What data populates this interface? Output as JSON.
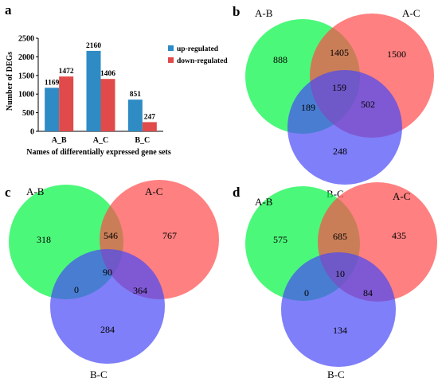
{
  "panel_labels": [
    "a",
    "b",
    "c",
    "d"
  ],
  "colors": {
    "up": "#2e8bc4",
    "down": "#e04a4a",
    "venn_ab": "#00f541",
    "venn_ac": "#ff4a4a",
    "venn_bc": "#4848f7"
  },
  "chart_data": [
    {
      "type": "bar",
      "title": "",
      "xlabel": "Names of differentially expressed gene sets",
      "ylabel": "Number of DEGs",
      "ylim": [
        0,
        2500
      ],
      "yticks": [
        0,
        500,
        1000,
        1500,
        2000,
        2500
      ],
      "categories": [
        "A_B",
        "A_C",
        "B_C"
      ],
      "series": [
        {
          "name": "up-regulated",
          "values": [
            1169,
            2160,
            851
          ]
        },
        {
          "name": "down-regulated",
          "values": [
            1472,
            1406,
            247
          ]
        }
      ],
      "data_labels": [
        [
          "1169",
          "2160",
          "851"
        ],
        [
          "1472",
          "1406",
          "247"
        ]
      ],
      "legend": "top-right",
      "grid": false
    },
    {
      "type": "venn",
      "sets": [
        "A-B",
        "A-C",
        "B-C"
      ],
      "regions": {
        "only_ab": 888,
        "only_ac": 1500,
        "only_bc": 248,
        "ab_ac": 1405,
        "ab_bc": 189,
        "ac_bc": 502,
        "all": 159
      }
    },
    {
      "type": "venn",
      "sets": [
        "A-B",
        "A-C",
        "B-C"
      ],
      "regions": {
        "only_ab": 318,
        "only_ac": 767,
        "only_bc": 284,
        "ab_ac": 546,
        "ab_bc": 0,
        "ac_bc": 364,
        "all": 90
      }
    },
    {
      "type": "venn",
      "sets": [
        "A-B",
        "A-C",
        "B-C"
      ],
      "regions": {
        "only_ab": 575,
        "only_ac": 435,
        "only_bc": 134,
        "ab_ac": 685,
        "ab_bc": 0,
        "ac_bc": 84,
        "all": 10
      }
    }
  ]
}
